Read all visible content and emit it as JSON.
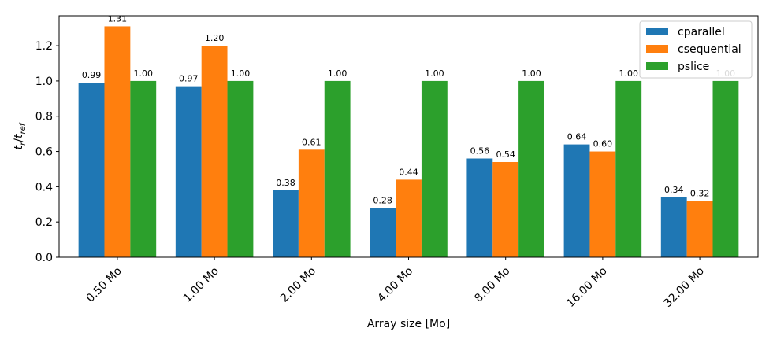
{
  "chart_data": {
    "type": "bar",
    "categories": [
      "0.50 Mo",
      "1.00 Mo",
      "2.00 Mo",
      "4.00 Mo",
      "8.00 Mo",
      "16.00 Mo",
      "32.00 Mo"
    ],
    "series": [
      {
        "name": "cparallel",
        "color": "#1f77b4",
        "values": [
          0.99,
          0.97,
          0.38,
          0.28,
          0.56,
          0.64,
          0.34
        ]
      },
      {
        "name": "csequential",
        "color": "#ff7f0e",
        "values": [
          1.31,
          1.2,
          0.61,
          0.44,
          0.54,
          0.6,
          0.32
        ]
      },
      {
        "name": "pslice",
        "color": "#2ca02c",
        "values": [
          1.0,
          1.0,
          1.0,
          1.0,
          1.0,
          1.0,
          1.0
        ]
      }
    ],
    "data_labels": [
      [
        "0.99",
        "0.97",
        "0.38",
        "0.28",
        "0.56",
        "0.64",
        "0.34"
      ],
      [
        "1.31",
        "1.20",
        "0.61",
        "0.44",
        "0.54",
        "0.60",
        "0.32"
      ],
      [
        "1.00",
        "1.00",
        "1.00",
        "1.00",
        "1.00",
        "1.00",
        "1.00"
      ]
    ],
    "xlabel": "Array size [Mo]",
    "ylabel": "t_r/t_ref",
    "ylim": [
      0,
      1.37
    ],
    "yticks": [
      0.0,
      0.2,
      0.4,
      0.6,
      0.8,
      1.0,
      1.2
    ],
    "ytick_labels": [
      "0.0",
      "0.2",
      "0.4",
      "0.6",
      "0.8",
      "1.0",
      "1.2"
    ],
    "legend_position": "top-right",
    "grid": false
  }
}
